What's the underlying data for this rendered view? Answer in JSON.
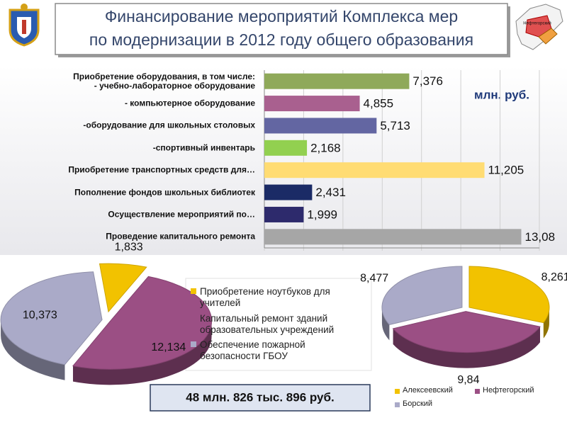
{
  "title": [
    "Финансирование мероприятий  Комплекса мер",
    "по модернизации в 2012 году общего образования"
  ],
  "unit": "млн. руб.",
  "total": "48 млн. 826 тыс. 896 руб.",
  "map": {
    "labels": [
      "Нефтегорский"
    ]
  },
  "chart_data": [
    {
      "type": "bar",
      "categories": [
        "Приобретение оборудования, в том числе:\n- учебно-лабораторное оборудование",
        "- компьютерное оборудование",
        "-оборудование для школьных столовых",
        "-спортивный инвентарь",
        "Приобретение транспортных средств для…",
        "Пополнение фондов школьных библиотек",
        "Осуществление мероприятий по…",
        "Проведение капитального ремонта"
      ],
      "values": [
        7.376,
        4.855,
        5.713,
        2.168,
        11.205,
        2.431,
        1.999,
        13.08
      ],
      "value_labels": [
        "7,376",
        "4,855",
        "5,713",
        "2,168",
        "11,205",
        "2,431",
        "1,999",
        "13,08"
      ],
      "colors": [
        "#8fa95a",
        "#a9608f",
        "#6366a2",
        "#92d050",
        "#ffdc73",
        "#1b2b66",
        "#2d2a6c",
        "#a6a6a6"
      ],
      "xlim": [
        0,
        14
      ],
      "xticks": [
        0,
        2,
        4,
        6,
        8,
        10,
        12,
        14
      ],
      "grid": true
    },
    {
      "type": "pie",
      "categories": [
        "Приобретение ноутбуков для учителей",
        "Капитальный ремонт зданий образовательных учреждений",
        "Обеспечение пожарной безопасности ГБОУ"
      ],
      "values": [
        1.833,
        12.134,
        10.373
      ],
      "value_labels": [
        "1,833",
        "12,134",
        "10,373"
      ],
      "colors": [
        "#f2c200",
        "#9b4f84",
        "#aaaac8"
      ],
      "legend": "right"
    },
    {
      "type": "pie",
      "categories": [
        "Алексеевский",
        "Нефтегорский",
        "Борский"
      ],
      "values": [
        8.261,
        9.84,
        8.477
      ],
      "value_labels": [
        "8,261",
        "9,84",
        "8,477"
      ],
      "colors": [
        "#f2c200",
        "#9b4f84",
        "#aaaac8"
      ],
      "legend": "bottom"
    }
  ]
}
